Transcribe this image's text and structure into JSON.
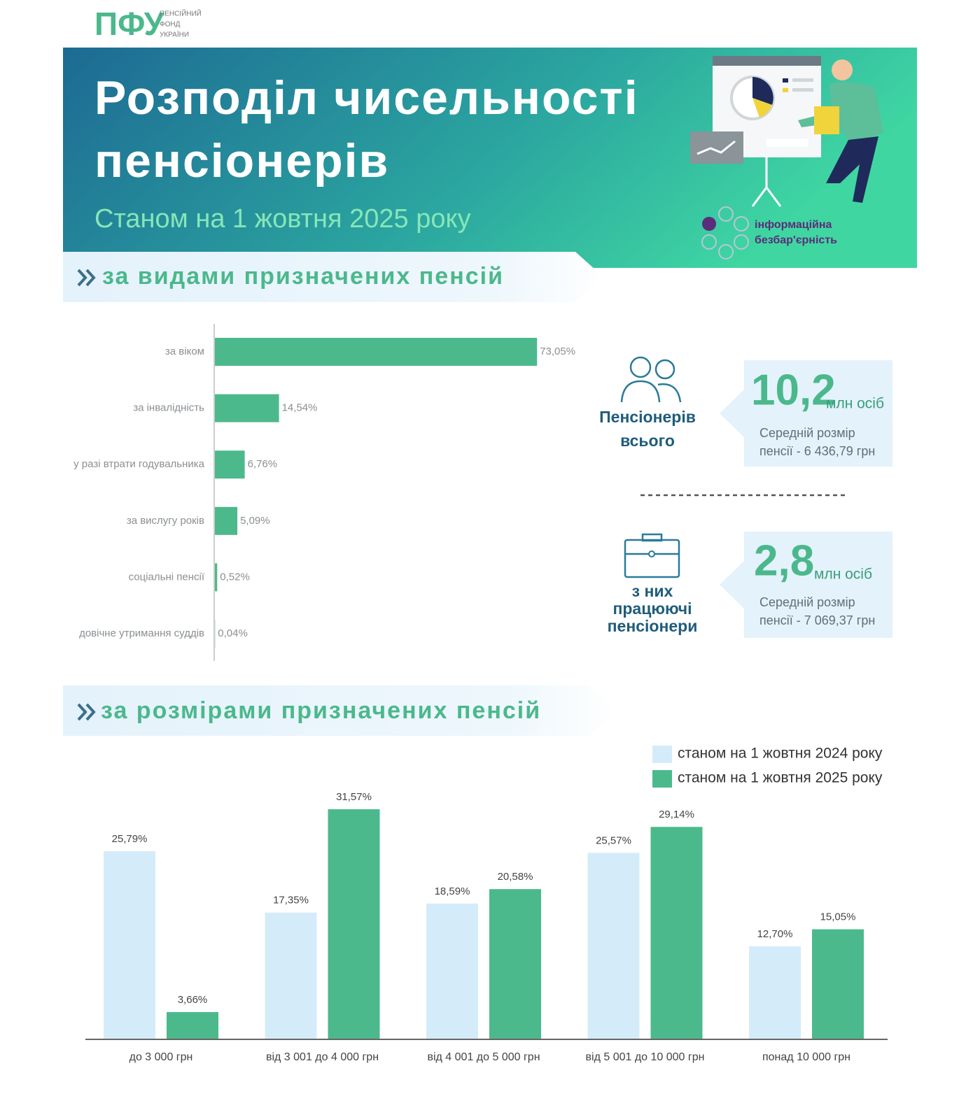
{
  "logo": {
    "abbr": "ПФУ",
    "name_lines": [
      "ПЕНСІЙНИЙ",
      "ФОНД",
      "УКРАЇНИ"
    ]
  },
  "header": {
    "title_lines": [
      "Розподіл чисельності",
      "пенсіонерів"
    ],
    "subtitle": "Станом на 1 жовтня 2025 року",
    "badge_lines": [
      "інформаційна",
      "безбар'єрність"
    ]
  },
  "sections": [
    "за видами призначених пенсій",
    "за розмірами призначених пенсій"
  ],
  "stats": [
    {
      "label_lines": [
        "Пенсіонерів",
        "всього"
      ],
      "value": "10,2",
      "unit": "млн осіб",
      "note_lines": [
        "Середній розмір",
        "пенсії - 6 436,79 грн"
      ]
    },
    {
      "label_lines": [
        "з них",
        "працюючі",
        "пенсіонери"
      ],
      "value": "2,8",
      "unit": "млн осіб",
      "note_lines": [
        "Середній розмір",
        "пенсії - 7 069,37 грн"
      ]
    }
  ],
  "chart_data": [
    {
      "type": "hbar",
      "categories": [
        "за віком",
        "за інвалідність",
        "у разі втрати годувальника",
        "за вислугу років",
        "соціальні пенсії",
        "довічне утримання суддів"
      ],
      "values": [
        73.05,
        14.54,
        6.76,
        5.09,
        0.52,
        0.04
      ],
      "value_labels": [
        "73,05%",
        "14,54%",
        "6,76%",
        "5,09%",
        "0,52%",
        "0,04%"
      ],
      "color": "#4cb98c"
    },
    {
      "type": "bar",
      "categories": [
        "до 3 000 грн",
        "від 3 001 до 4 000 грн",
        "від 4 001 до 5 000 грн",
        "від 5 001 до 10 000 грн",
        "понад 10 000 грн"
      ],
      "series": [
        {
          "name": "станом на 1 жовтня 2024 року",
          "color": "#d4ecfa",
          "values": [
            25.79,
            17.35,
            18.59,
            25.57,
            12.7
          ],
          "value_labels": [
            "25,79%",
            "17,35%",
            "18,59%",
            "25,57%",
            "12,70%"
          ]
        },
        {
          "name": "станом на 1 жовтня 2025 року",
          "color": "#4cb98c",
          "values": [
            3.66,
            31.57,
            20.58,
            29.14,
            15.05
          ],
          "value_labels": [
            "3,66%",
            "31,57%",
            "20,58%",
            "29,14%",
            "15,05%"
          ]
        }
      ]
    }
  ]
}
